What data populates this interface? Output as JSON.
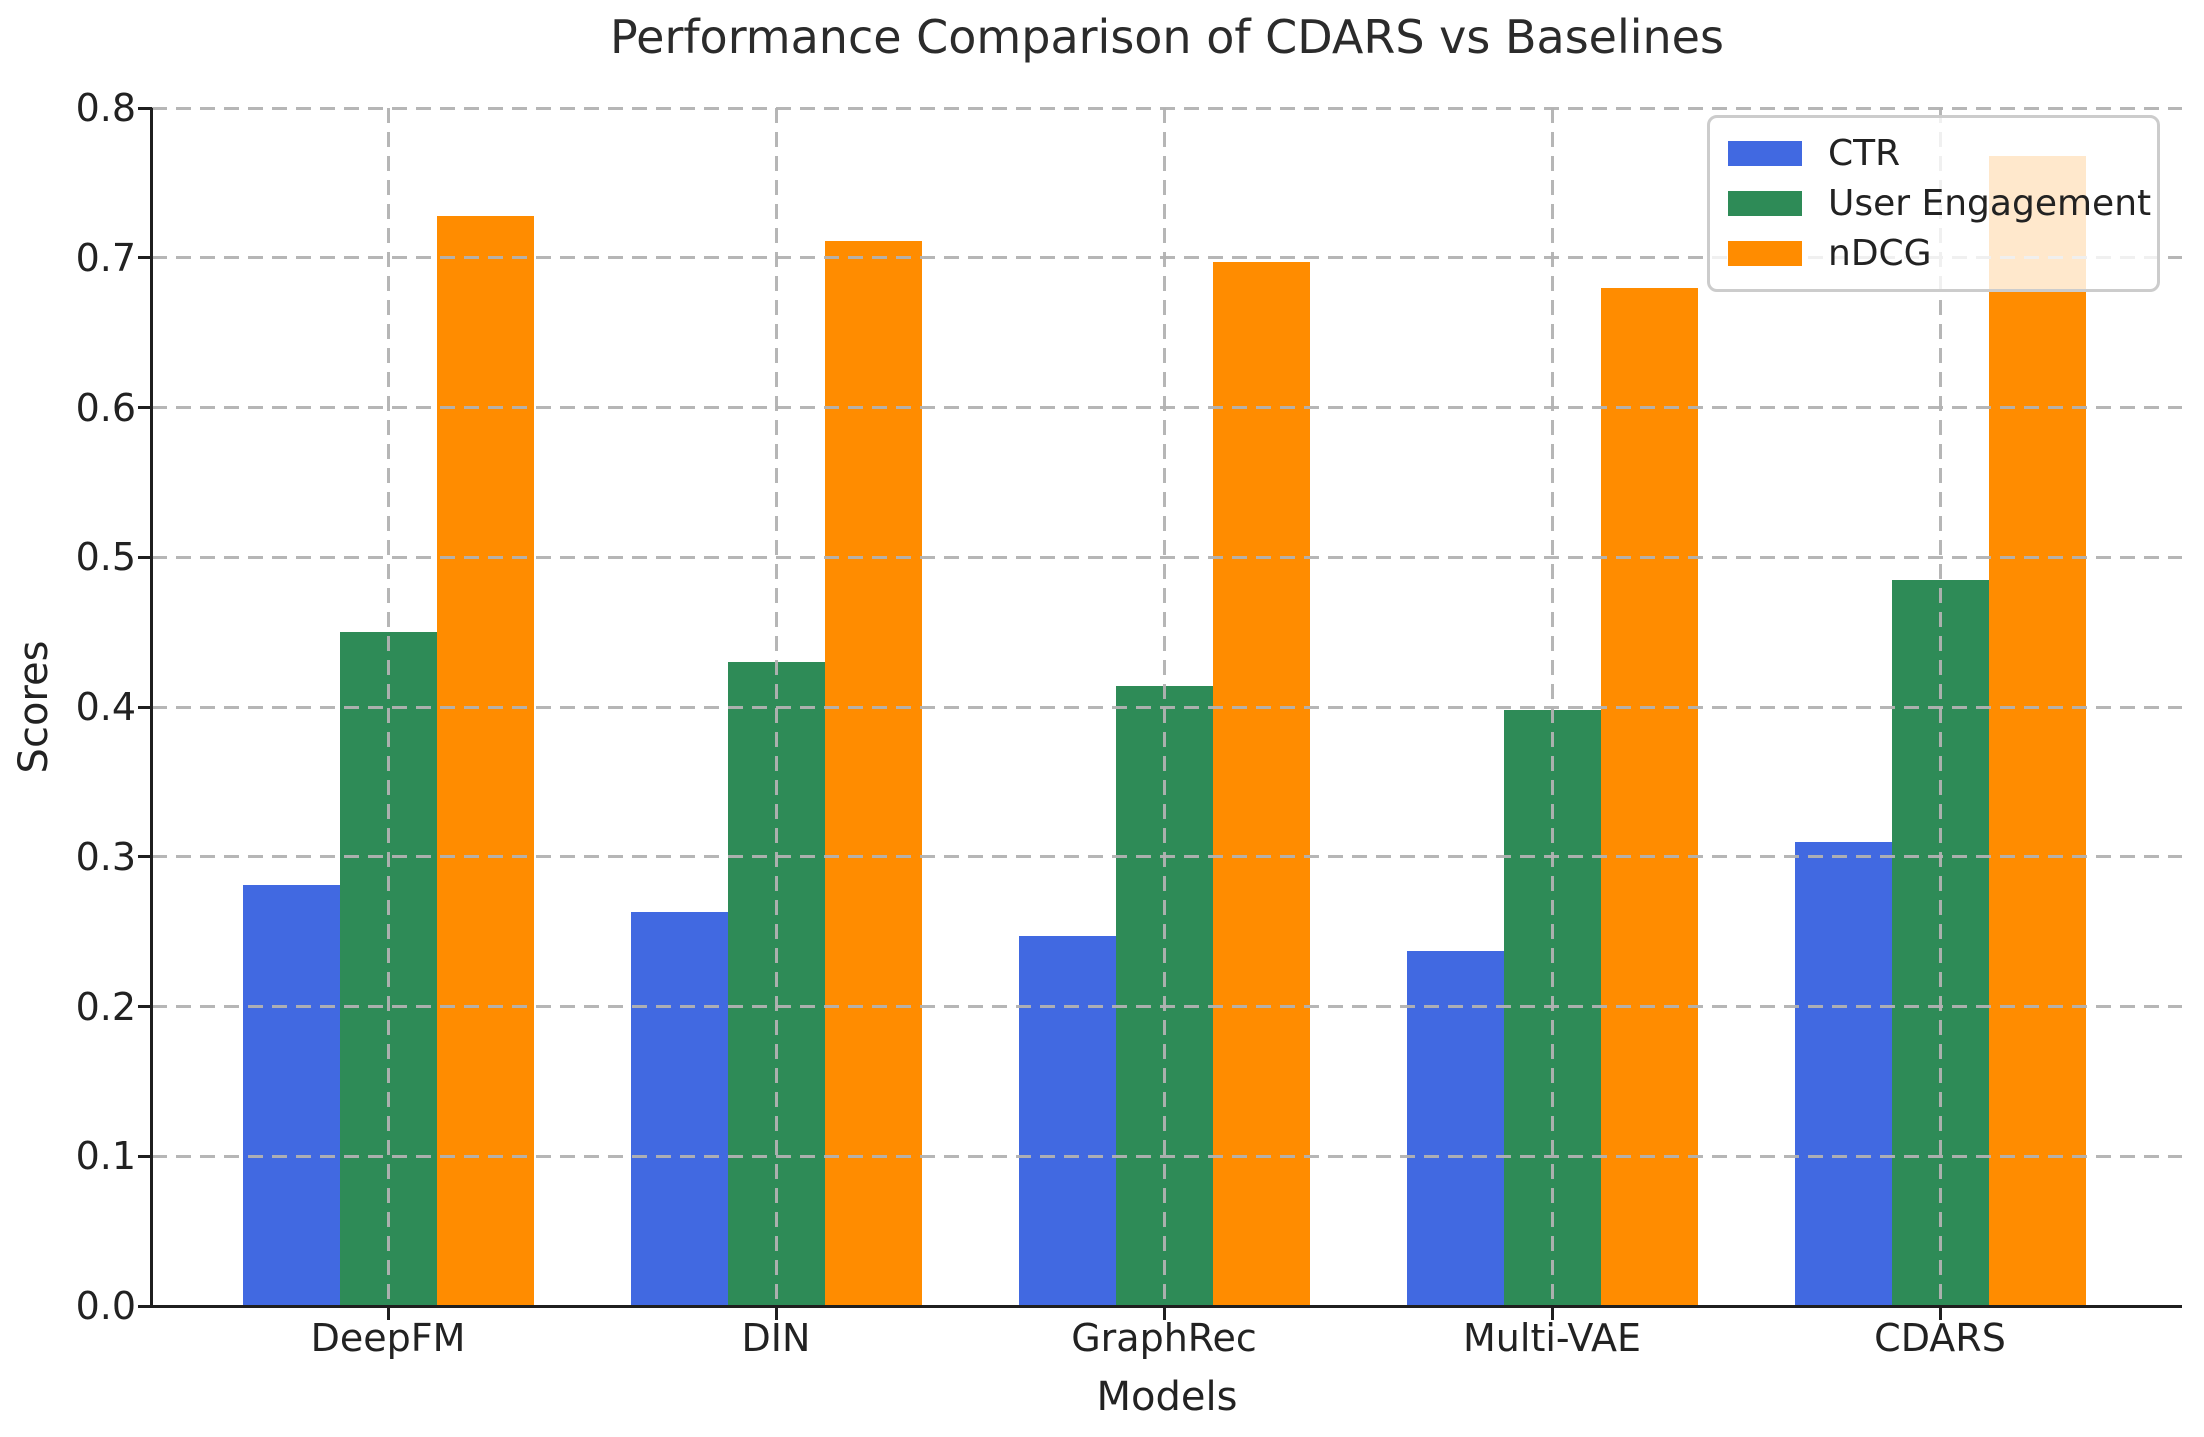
{
  "title": "Performance Comparison of CDARS vs Baselines",
  "chart_data": {
    "type": "bar",
    "categories": [
      "DeepFM",
      "DIN",
      "GraphRec",
      "Multi-VAE",
      "CDARS"
    ],
    "series": [
      {
        "name": "CTR",
        "color": "#4169E1",
        "values": [
          0.281,
          0.263,
          0.247,
          0.237,
          0.31
        ]
      },
      {
        "name": "User Engagement",
        "color": "#2E8B57",
        "values": [
          0.45,
          0.43,
          0.414,
          0.398,
          0.485
        ]
      },
      {
        "name": "nDCG",
        "color": "#FF8C00",
        "values": [
          0.728,
          0.711,
          0.697,
          0.68,
          0.768
        ]
      }
    ],
    "xlabel": "Models",
    "ylabel": "Scores",
    "ylim": [
      0.0,
      0.8
    ],
    "yticks": [
      0.0,
      0.1,
      0.2,
      0.3,
      0.4,
      0.5,
      0.6,
      0.7,
      0.8
    ],
    "grid": true,
    "grid_style": "dashed",
    "legend_position": "top-right",
    "grid_color": "#b2b2b2",
    "axis_color": "#1f1f1f"
  }
}
